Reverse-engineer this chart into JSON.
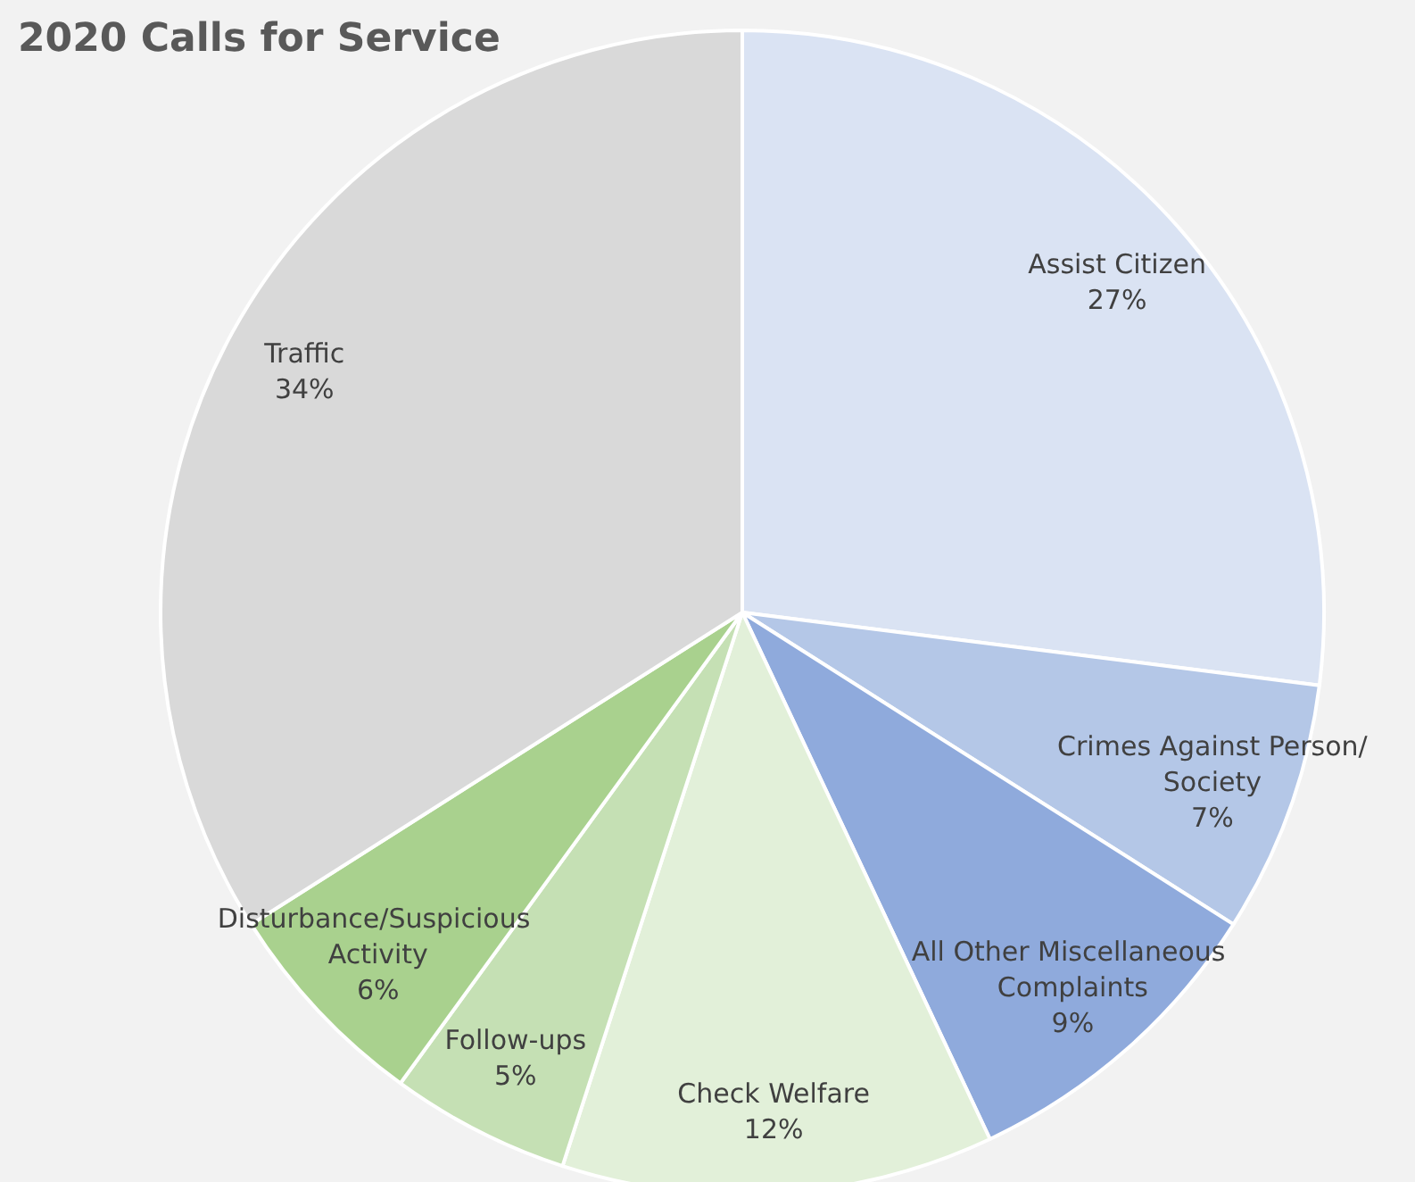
{
  "chart_data": {
    "type": "pie",
    "title": "2020 Calls for Service",
    "categories": [
      "Assist Citizen",
      "Crimes Against Person/Society",
      "All Other Miscellaneous Complaints",
      "Check Welfare",
      "Follow-ups",
      "Disturbance/Suspicious Activity",
      "Traffic"
    ],
    "values": [
      27,
      7,
      9,
      12,
      5,
      6,
      34
    ],
    "value_labels": [
      "27%",
      "7%",
      "9%",
      "12%",
      "5%",
      "6%",
      "34%"
    ],
    "colors": [
      "#dae3f3",
      "#b4c7e7",
      "#8faadc",
      "#e2f0d9",
      "#c5e0b4",
      "#a9d18e",
      "#d9d9d9"
    ],
    "legend": false
  }
}
